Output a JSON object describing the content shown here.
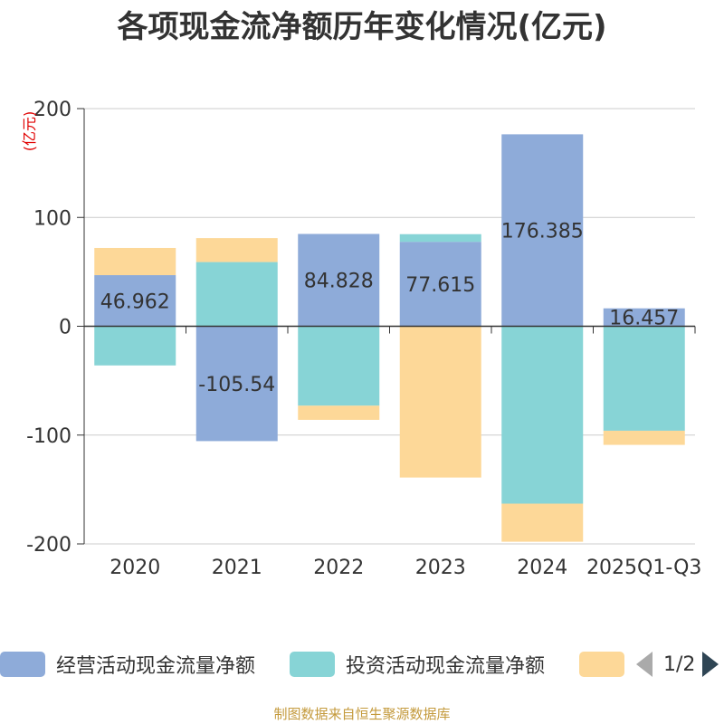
{
  "title": "各项现金流净额历年变化情况(亿元)",
  "source": "制图数据来自恒生聚源数据库",
  "colors": {
    "operating": "#8eabd9",
    "investing": "#87d4d6",
    "financing": "#fdd898",
    "axis": "#333333",
    "grid": "#cccccc",
    "unit": "#e00000"
  },
  "legend": {
    "items": [
      "经营活动现金流量净额",
      "投资活动现金流量净额",
      ""
    ],
    "page": "1/2"
  },
  "chart_data": {
    "type": "bar",
    "stacked": true,
    "unit": "(亿元)",
    "categories": [
      "2020",
      "2021",
      "2022",
      "2023",
      "2024",
      "2025Q1-Q3"
    ],
    "ylim": [
      -200,
      200
    ],
    "yticks": [
      200,
      100,
      0,
      -100,
      -200
    ],
    "grid": true,
    "legend_position": "bottom",
    "series": [
      {
        "name": "经营活动现金流量净额",
        "values": [
          46.962,
          -105.54,
          84.828,
          77.615,
          176.385,
          16.457
        ],
        "labels": [
          "46.962",
          "-105.54",
          "84.828",
          "77.615",
          "176.385",
          "16.457"
        ]
      },
      {
        "name": "投资活动现金流量净额",
        "values": [
          -36,
          59,
          -73,
          7,
          -163,
          -96
        ]
      },
      {
        "values": [
          25,
          22,
          -13,
          -139,
          -35,
          -13
        ]
      }
    ]
  }
}
